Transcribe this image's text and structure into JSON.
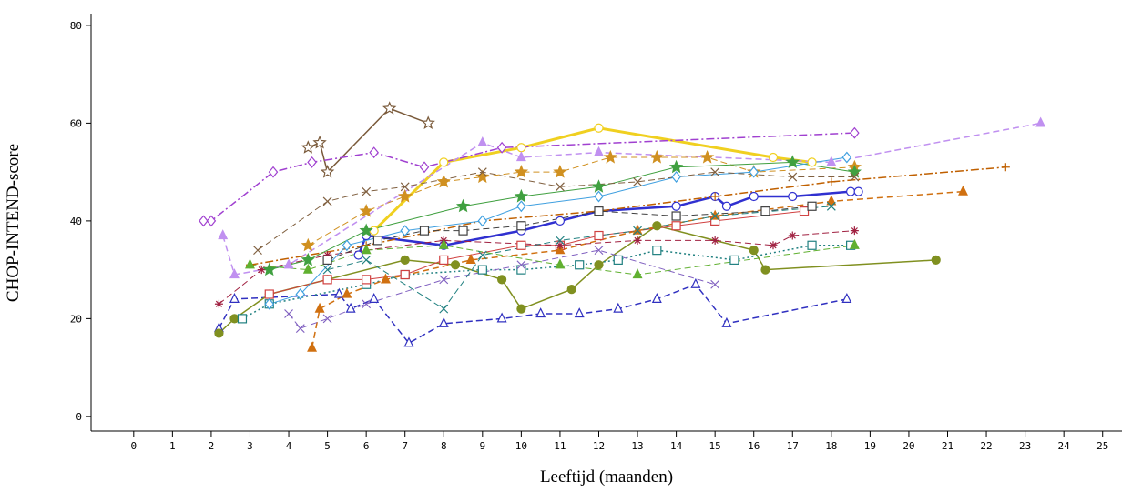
{
  "chart_data": {
    "type": "line",
    "xlabel": "Leeftijd  (maanden)",
    "ylabel": "CHOP-INTEND-score",
    "xlim": [
      -1.1,
      25.5
    ],
    "ylim": [
      -3,
      82.4
    ],
    "xticks": [
      0,
      1,
      2,
      3,
      4,
      5,
      6,
      7,
      8,
      9,
      10,
      11,
      12,
      13,
      14,
      15,
      16,
      17,
      18,
      19,
      20,
      21,
      22,
      23,
      24,
      25
    ],
    "yticks": [
      0,
      20,
      40,
      60,
      80
    ],
    "series": [
      {
        "color": "#f0d020",
        "marker": "circle",
        "filled": false,
        "dash": "solid",
        "linewidth": 3,
        "x": [
          6.2,
          8,
          10,
          12,
          16.5,
          17.5
        ],
        "values": [
          38,
          52,
          55,
          59,
          53,
          52
        ]
      },
      {
        "color": "#3030d0",
        "marker": "circle",
        "filled": false,
        "dash": "solid",
        "linewidth": 2.5,
        "x": [
          5.8,
          6,
          8,
          10,
          11,
          12,
          14,
          15,
          15.3,
          16,
          17,
          18.5,
          18.7
        ],
        "values": [
          33,
          37,
          35,
          38,
          40,
          42,
          43,
          45,
          43,
          45,
          45,
          46,
          46
        ]
      },
      {
        "color": "#7a5a3a",
        "marker": "star",
        "filled": false,
        "dash": "solid",
        "linewidth": 1.5,
        "x": [
          4.5,
          4.8,
          5,
          6.6,
          7.6
        ],
        "values": [
          55,
          56,
          50,
          63,
          60
        ]
      },
      {
        "color": "#a040d0",
        "marker": "diamond",
        "filled": false,
        "dash": "dashdot",
        "linewidth": 1.5,
        "x": [
          1.8,
          2,
          3.6,
          4.6,
          6.2,
          7.5,
          9.5,
          18.6
        ],
        "values": [
          40,
          40,
          50,
          52,
          54,
          51,
          55,
          58
        ]
      },
      {
        "color": "#c090f0",
        "marker": "triangle",
        "filled": true,
        "dash": "dashed",
        "linewidth": 1.5,
        "x": [
          2.3,
          2.6,
          4,
          9,
          10,
          12,
          18,
          23.4
        ],
        "values": [
          37,
          29,
          31,
          56,
          53,
          54,
          52,
          60
        ]
      },
      {
        "color": "#3030c0",
        "marker": "triangle",
        "filled": false,
        "dash": "dashed",
        "linewidth": 1.5,
        "x": [
          2.2,
          2.6,
          5.3,
          5.6,
          6.2,
          7.1,
          8,
          9.5,
          10.5,
          11.5,
          12.5,
          13.5,
          14.5,
          15.3,
          18.4
        ],
        "values": [
          18,
          24,
          25,
          22,
          24,
          15,
          19,
          20,
          21,
          21,
          22,
          24,
          27,
          19,
          24
        ]
      },
      {
        "color": "#809020",
        "marker": "circle",
        "filled": true,
        "dash": "solid",
        "linewidth": 1.5,
        "x": [
          2.2,
          2.6,
          3.5,
          5,
          7,
          8.3,
          9.5,
          10,
          11.3,
          12,
          13.5,
          16,
          16.3,
          20.7
        ],
        "values": [
          17,
          20,
          25,
          28,
          32,
          31,
          28,
          22,
          26,
          31,
          39,
          34,
          30,
          32
        ]
      },
      {
        "color": "#208080",
        "marker": "square",
        "filled": false,
        "dash": "dotted",
        "linewidth": 1.5,
        "x": [
          2.8,
          3.5,
          6,
          7,
          9,
          10,
          11.5,
          12.5,
          13.5,
          15.5,
          17.5,
          18.5
        ],
        "values": [
          20,
          23,
          27,
          29,
          30,
          30,
          31,
          32,
          34,
          32,
          35,
          35
        ]
      },
      {
        "color": "#d04040",
        "marker": "square",
        "filled": false,
        "dash": "solid",
        "linewidth": 1,
        "x": [
          3.5,
          5,
          6,
          7,
          8,
          10,
          11,
          12,
          14,
          15,
          17.3
        ],
        "values": [
          25,
          28,
          28,
          29,
          32,
          35,
          35,
          37,
          39,
          40,
          42
        ]
      },
      {
        "color": "#d07010",
        "marker": "triangle",
        "filled": true,
        "dash": "dashed",
        "linewidth": 1.5,
        "x": [
          4.6,
          4.8,
          5.5,
          6.5,
          8.7,
          11,
          13,
          15,
          18,
          21.4
        ],
        "values": [
          14,
          22,
          25,
          28,
          32,
          34,
          38,
          41,
          44,
          46
        ]
      },
      {
        "color": "#c06000",
        "marker": "plus",
        "filled": false,
        "dash": "dashdot",
        "linewidth": 1.5,
        "x": [
          3,
          6,
          9,
          12,
          15,
          18,
          22.5
        ],
        "values": [
          31,
          35,
          40,
          42,
          45,
          48,
          51
        ]
      },
      {
        "color": "#a02040",
        "marker": "asterisk",
        "filled": false,
        "dash": "dashed",
        "linewidth": 1,
        "x": [
          2.2,
          3.3,
          5,
          8,
          11,
          13,
          15,
          16.5,
          17,
          18.6
        ],
        "values": [
          23,
          30,
          33,
          36,
          35,
          36,
          36,
          35,
          37,
          38
        ]
      },
      {
        "color": "#404040",
        "marker": "square",
        "filled": false,
        "dash": "dashed",
        "linewidth": 1,
        "x": [
          5,
          6.3,
          7.5,
          8.5,
          10,
          12,
          14,
          16.3,
          17.5
        ],
        "values": [
          32,
          36,
          38,
          38,
          39,
          42,
          41,
          42,
          43
        ]
      },
      {
        "color": "#d09020",
        "marker": "star",
        "filled": true,
        "dash": "dashed",
        "linewidth": 1,
        "x": [
          4.5,
          6,
          7,
          8,
          9,
          10,
          11,
          12.3,
          13.5,
          14.8,
          16,
          18.6
        ],
        "values": [
          35,
          42,
          45,
          48,
          49,
          50,
          50,
          53,
          53,
          53,
          50,
          51
        ]
      },
      {
        "color": "#40a040",
        "marker": "star",
        "filled": true,
        "dash": "solid",
        "linewidth": 1,
        "x": [
          3.5,
          4.5,
          6,
          8.5,
          10,
          12,
          14,
          17,
          18.6
        ],
        "values": [
          30,
          32,
          38,
          43,
          45,
          47,
          51,
          52,
          50
        ]
      },
      {
        "color": "#40a0e0",
        "marker": "diamond",
        "filled": false,
        "dash": "solid",
        "linewidth": 1,
        "x": [
          3.5,
          4.3,
          5.5,
          7,
          9,
          10,
          12,
          14,
          16,
          18.4
        ],
        "values": [
          23,
          25,
          35,
          38,
          40,
          43,
          45,
          49,
          50,
          53
        ]
      },
      {
        "color": "#8060c0",
        "marker": "x",
        "filled": false,
        "dash": "dashed",
        "linewidth": 1,
        "x": [
          4,
          4.3,
          5,
          6,
          8,
          10,
          12,
          15
        ],
        "values": [
          21,
          18,
          20,
          23,
          28,
          31,
          34,
          27
        ]
      },
      {
        "color": "#208080",
        "marker": "x",
        "filled": false,
        "dash": "dashed",
        "linewidth": 1,
        "x": [
          5,
          6,
          8,
          9,
          11,
          13,
          15,
          18
        ],
        "values": [
          30,
          32,
          22,
          33,
          36,
          38,
          41,
          43
        ]
      },
      {
        "color": "#806040",
        "marker": "x",
        "filled": false,
        "dash": "dashed",
        "linewidth": 1,
        "x": [
          3.2,
          5,
          6,
          7,
          9,
          11,
          13,
          15,
          17,
          18.6
        ],
        "values": [
          34,
          44,
          46,
          47,
          50,
          47,
          48,
          50,
          49,
          49
        ]
      },
      {
        "color": "#60b030",
        "marker": "triangle",
        "filled": true,
        "dash": "dashed",
        "linewidth": 1,
        "x": [
          3,
          4.5,
          6,
          8,
          11,
          13,
          18.6
        ],
        "values": [
          31,
          30,
          34,
          35,
          31,
          29,
          35
        ]
      }
    ]
  }
}
